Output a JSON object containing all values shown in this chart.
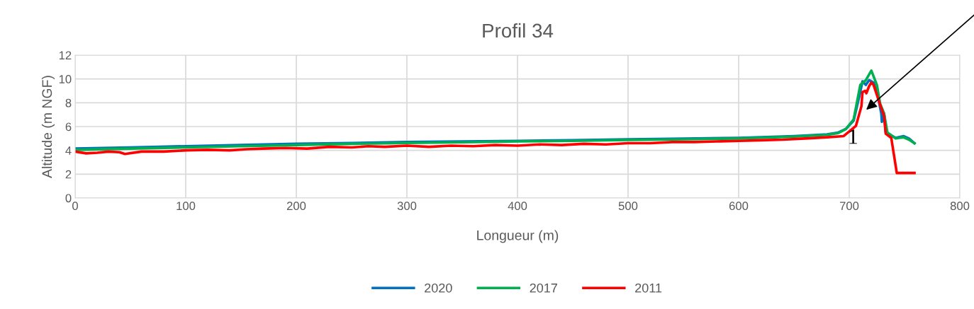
{
  "chart_data": {
    "type": "line",
    "title": "Profil 34",
    "xlabel": "Longueur (m)",
    "ylabel": "Altitude (m NGF)",
    "xlim": [
      0,
      800
    ],
    "xticks": [
      0,
      100,
      200,
      300,
      400,
      500,
      600,
      700,
      800
    ],
    "ylim": [
      0,
      12
    ],
    "yticks": [
      0,
      2,
      4,
      6,
      8,
      10,
      12
    ],
    "grid": true,
    "legend": "bottom",
    "marker": "none",
    "line_style": "solid",
    "annotations": [
      {
        "text": "1",
        "x": 714,
        "y": 7.3
      }
    ],
    "series": [
      {
        "name": "2020",
        "color": "#0070c0",
        "x": [
          0,
          50,
          100,
          150,
          200,
          250,
          300,
          350,
          400,
          450,
          500,
          550,
          600,
          650,
          680,
          690,
          697,
          704,
          709,
          712,
          715,
          718,
          722,
          726,
          729,
          729.5,
          731.5,
          733,
          742,
          749,
          754,
          759
        ],
        "values": [
          4.15,
          4.25,
          4.35,
          4.45,
          4.55,
          4.62,
          4.7,
          4.75,
          4.8,
          4.85,
          4.92,
          4.98,
          5.05,
          5.2,
          5.35,
          5.5,
          5.8,
          6.5,
          8.5,
          9.8,
          9.5,
          9.9,
          9.7,
          8.5,
          7.1,
          6.4,
          7.1,
          5.5,
          5.05,
          5.2,
          5.0,
          4.6
        ]
      },
      {
        "name": "2017",
        "color": "#00b050",
        "x": [
          0,
          50,
          100,
          150,
          200,
          250,
          300,
          350,
          400,
          450,
          500,
          550,
          600,
          650,
          680,
          690,
          697,
          704,
          710,
          715,
          720,
          725,
          728,
          731.5,
          734.5,
          742,
          749,
          754,
          759
        ],
        "values": [
          4.05,
          4.15,
          4.25,
          4.35,
          4.45,
          4.55,
          4.62,
          4.68,
          4.75,
          4.8,
          4.87,
          4.93,
          5.0,
          5.15,
          5.3,
          5.45,
          5.8,
          6.6,
          9.5,
          9.9,
          10.7,
          9.5,
          7.9,
          7.1,
          5.5,
          5.0,
          5.1,
          4.9,
          4.6
        ]
      },
      {
        "name": "2011",
        "color": "#ff0000",
        "x": [
          0,
          10,
          20,
          30,
          40,
          45,
          60,
          80,
          100,
          120,
          140,
          155,
          170,
          190,
          210,
          230,
          250,
          265,
          280,
          300,
          320,
          340,
          360,
          380,
          400,
          420,
          440,
          460,
          480,
          500,
          520,
          540,
          560,
          580,
          600,
          620,
          640,
          660,
          680,
          695,
          706,
          711,
          712,
          714.5,
          715.5,
          718,
          720,
          722,
          727,
          731.5,
          733,
          738,
          743,
          759
        ],
        "values": [
          3.9,
          3.75,
          3.8,
          3.9,
          3.85,
          3.7,
          3.9,
          3.9,
          4.0,
          4.05,
          4.0,
          4.1,
          4.15,
          4.2,
          4.15,
          4.3,
          4.25,
          4.35,
          4.3,
          4.4,
          4.3,
          4.4,
          4.35,
          4.45,
          4.4,
          4.5,
          4.45,
          4.55,
          4.5,
          4.6,
          4.6,
          4.7,
          4.7,
          4.75,
          4.8,
          4.85,
          4.9,
          5.0,
          5.1,
          5.2,
          6.05,
          7.7,
          8.9,
          9.0,
          8.8,
          9.4,
          9.7,
          9.5,
          8.1,
          6.9,
          5.4,
          5.05,
          2.1,
          2.1
        ]
      }
    ]
  }
}
